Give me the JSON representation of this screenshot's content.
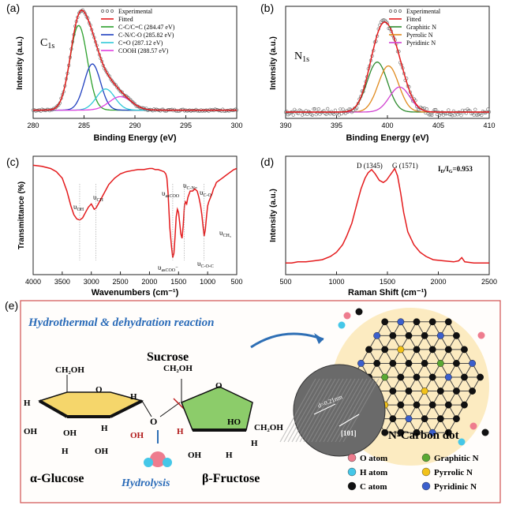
{
  "panels": {
    "a": {
      "label": "(a)",
      "element": "C",
      "element_sub": "1s"
    },
    "b": {
      "label": "(b)",
      "element": "N",
      "element_sub": "1s"
    },
    "c": {
      "label": "(c)"
    },
    "d": {
      "label": "(d)"
    },
    "e": {
      "label": "(e)"
    }
  },
  "chart_data": [
    {
      "id": "a",
      "type": "line",
      "xlabel": "Binding Energy (eV)",
      "ylabel": "Intensity (a.u.)",
      "xlim": [
        280,
        300
      ],
      "xticks": [
        280,
        285,
        290,
        295,
        300
      ],
      "legend_position": "top-right",
      "series": [
        {
          "name": "Experimental",
          "style": "circles",
          "color": "#555555",
          "shape": "composite"
        },
        {
          "name": "Fitted",
          "color": "#e41a1c",
          "shape": "composite"
        },
        {
          "name": "C-C/C=C (284.47 eV)",
          "color": "#2ca02c",
          "center": 284.47,
          "height": 0.88,
          "sigma": 0.85
        },
        {
          "name": "C-N/C-O (285.82 eV)",
          "color": "#1f3fbf",
          "center": 285.82,
          "height": 0.48,
          "sigma": 0.8
        },
        {
          "name": "C=O (287.12 eV)",
          "color": "#30c8d8",
          "center": 287.12,
          "height": 0.22,
          "sigma": 0.9
        },
        {
          "name": "COOH (288.57 eV)",
          "color": "#e040e0",
          "center": 288.57,
          "height": 0.14,
          "sigma": 1.1
        }
      ]
    },
    {
      "id": "b",
      "type": "line",
      "xlabel": "Binding Energy (eV)",
      "ylabel": "Intensity (a.u.)",
      "xlim": [
        390,
        410
      ],
      "xticks": [
        390,
        395,
        400,
        405,
        410
      ],
      "legend_position": "top-right",
      "series": [
        {
          "name": "Experimental",
          "style": "circles",
          "color": "#555555",
          "shape": "composite"
        },
        {
          "name": "Fitted",
          "color": "#e41a1c",
          "shape": "composite"
        },
        {
          "name": "Graphitic N",
          "color": "#2e8b2e",
          "center": 399.0,
          "height": 0.52,
          "sigma": 1.0
        },
        {
          "name": "Pyrrolic N",
          "color": "#e08a1e",
          "center": 400.1,
          "height": 0.48,
          "sigma": 1.0
        },
        {
          "name": "Pyridinic N",
          "color": "#d040d0",
          "center": 401.2,
          "height": 0.26,
          "sigma": 1.0
        }
      ]
    },
    {
      "id": "c",
      "type": "line",
      "xlabel": "Wavenumbers (cm⁻¹)",
      "ylabel": "Transmittance (%)",
      "xlim": [
        4000,
        500
      ],
      "xticks": [
        4000,
        3500,
        3000,
        2500,
        2000,
        1500,
        1000,
        500
      ],
      "annotations": [
        "υOH",
        "υCH",
        "υasCOO",
        "υasCOO",
        "υC-N=",
        "υC-O",
        "υC-O-C",
        "υCH₃"
      ],
      "series": [
        {
          "name": "FTIR",
          "color": "#e41a1c",
          "x": [
            4000,
            3850,
            3700,
            3600,
            3500,
            3420,
            3350,
            3300,
            3250,
            3200,
            3150,
            3100,
            3050,
            3000,
            2980,
            2950,
            2920,
            2900,
            2880,
            2850,
            2800,
            2700,
            2600,
            2500,
            2400,
            2300,
            2200,
            2100,
            2000,
            1950,
            1900,
            1850,
            1800,
            1750,
            1720,
            1700,
            1680,
            1650,
            1620,
            1600,
            1580,
            1560,
            1540,
            1520,
            1500,
            1480,
            1460,
            1440,
            1420,
            1400,
            1380,
            1360,
            1340,
            1300,
            1260,
            1220,
            1180,
            1150,
            1120,
            1100,
            1080,
            1060,
            1040,
            1020,
            1000,
            980,
            950,
            920,
            900,
            870,
            850,
            800,
            750,
            700,
            650,
            600,
            550,
            500
          ],
          "y": [
            0.96,
            0.95,
            0.93,
            0.9,
            0.84,
            0.72,
            0.58,
            0.5,
            0.46,
            0.45,
            0.47,
            0.52,
            0.57,
            0.6,
            0.58,
            0.55,
            0.56,
            0.58,
            0.6,
            0.63,
            0.68,
            0.78,
            0.84,
            0.88,
            0.9,
            0.91,
            0.92,
            0.92,
            0.93,
            0.93,
            0.92,
            0.92,
            0.91,
            0.9,
            0.88,
            0.84,
            0.7,
            0.38,
            0.2,
            0.1,
            0.14,
            0.3,
            0.48,
            0.55,
            0.52,
            0.42,
            0.32,
            0.28,
            0.4,
            0.58,
            0.62,
            0.6,
            0.66,
            0.72,
            0.72,
            0.74,
            0.72,
            0.66,
            0.58,
            0.5,
            0.4,
            0.3,
            0.36,
            0.48,
            0.58,
            0.62,
            0.66,
            0.7,
            0.74,
            0.77,
            0.8,
            0.82,
            0.84,
            0.86,
            0.88,
            0.9,
            0.92,
            0.93
          ]
        }
      ]
    },
    {
      "id": "d",
      "type": "line",
      "xlabel": "Raman Shift (cm⁻¹)",
      "ylabel": "Intensity (a.u.)",
      "xlim": [
        500,
        2500
      ],
      "xticks": [
        500,
        1000,
        1500,
        2000,
        2500
      ],
      "annotations": [
        "D (1345)",
        "G (1571)",
        "ID/IG=0.953"
      ],
      "series": [
        {
          "name": "Raman",
          "color": "#e41a1c",
          "x": [
            500,
            560,
            620,
            700,
            780,
            860,
            940,
            1000,
            1060,
            1100,
            1150,
            1200,
            1240,
            1280,
            1310,
            1345,
            1380,
            1420,
            1460,
            1490,
            1520,
            1550,
            1571,
            1600,
            1630,
            1660,
            1700,
            1760,
            1820,
            1880,
            1950,
            2050,
            2150,
            2200,
            2230,
            2260,
            2350,
            2450,
            2500
          ],
          "y": [
            0.05,
            0.05,
            0.06,
            0.06,
            0.07,
            0.08,
            0.11,
            0.15,
            0.22,
            0.3,
            0.42,
            0.6,
            0.74,
            0.84,
            0.89,
            0.92,
            0.88,
            0.82,
            0.8,
            0.82,
            0.86,
            0.9,
            0.93,
            0.86,
            0.7,
            0.52,
            0.34,
            0.22,
            0.15,
            0.11,
            0.08,
            0.07,
            0.06,
            0.07,
            0.1,
            0.06,
            0.05,
            0.05,
            0.05
          ]
        }
      ]
    }
  ],
  "scheme": {
    "title": "Hydrothermal & dehydration reaction",
    "sucrose_label": "Sucrose",
    "glucose_label": "α-Glucose",
    "fructose_label": "β-Fructose",
    "hydrolysis_label": "Hydrolysis",
    "ncd_label": "N-Carbon dot",
    "tem_d": "d=0.21nm",
    "tem_plane": "[101]",
    "atoms": {
      "ch2oh": "CH₂OH",
      "o": "O",
      "h": "H",
      "oh": "OH",
      "ho": "HO"
    },
    "legend": [
      {
        "name": "O atom",
        "color": "#ee7c8e"
      },
      {
        "name": "H atom",
        "color": "#45c7e8"
      },
      {
        "name": "C atom",
        "color": "#111111"
      },
      {
        "name": "Graphitic N",
        "color": "#5aa833"
      },
      {
        "name": "Pyrrolic N",
        "color": "#f2c21a"
      },
      {
        "name": "Pyridinic N",
        "color": "#3b5fcc"
      }
    ]
  }
}
